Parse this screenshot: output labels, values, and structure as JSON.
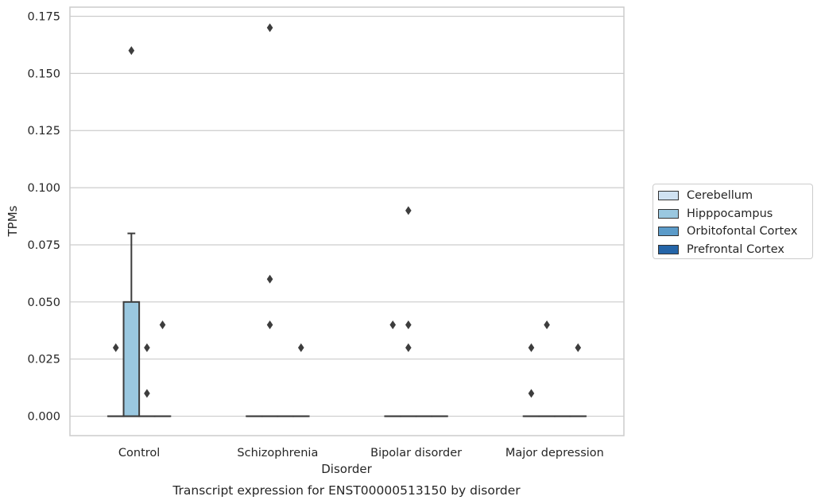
{
  "chart_data": {
    "type": "box",
    "title": "Transcript expression for ENST00000513150 by disorder",
    "xlabel": "Disorder",
    "ylabel": "TPMs",
    "ylim": [
      -0.0085,
      0.179
    ],
    "yticks": [
      0.0,
      0.025,
      0.05,
      0.075,
      0.1,
      0.125,
      0.15,
      0.175
    ],
    "ytick_labels": [
      "0.000",
      "0.025",
      "0.050",
      "0.075",
      "0.100",
      "0.125",
      "0.150",
      "0.175"
    ],
    "categories": [
      "Control",
      "Schizophrenia",
      "Bipolar disorder",
      "Major depression"
    ],
    "grid": "horizontal",
    "legend_position": "right",
    "series": [
      {
        "name": "Cerebellum",
        "color": "#d0e2f2",
        "boxes": [
          {
            "category": "Control",
            "q1": 0,
            "median": 0,
            "q3": 0,
            "whisker_low": 0,
            "whisker_high": 0,
            "outliers": [
              0.03
            ]
          },
          {
            "category": "Schizophrenia",
            "q1": 0,
            "median": 0,
            "q3": 0,
            "whisker_low": 0,
            "whisker_high": 0,
            "outliers": []
          },
          {
            "category": "Bipolar disorder",
            "q1": 0,
            "median": 0,
            "q3": 0,
            "whisker_low": 0,
            "whisker_high": 0,
            "outliers": [
              0.04
            ]
          },
          {
            "category": "Major depression",
            "q1": 0,
            "median": 0,
            "q3": 0,
            "whisker_low": 0,
            "whisker_high": 0,
            "outliers": [
              0.03,
              0.01
            ]
          }
        ]
      },
      {
        "name": "Hipppocampus",
        "color": "#9ac8e0",
        "boxes": [
          {
            "category": "Control",
            "q1": 0,
            "median": 0,
            "q3": 0.05,
            "whisker_low": 0,
            "whisker_high": 0.08,
            "outliers": [
              0.16
            ]
          },
          {
            "category": "Schizophrenia",
            "q1": 0,
            "median": 0,
            "q3": 0,
            "whisker_low": 0,
            "whisker_high": 0,
            "outliers": [
              0.17,
              0.06,
              0.04
            ]
          },
          {
            "category": "Bipolar disorder",
            "q1": 0,
            "median": 0,
            "q3": 0,
            "whisker_low": 0,
            "whisker_high": 0,
            "outliers": [
              0.09,
              0.04,
              0.03
            ]
          },
          {
            "category": "Major depression",
            "q1": 0,
            "median": 0,
            "q3": 0,
            "whisker_low": 0,
            "whisker_high": 0,
            "outliers": [
              0.04
            ]
          }
        ]
      },
      {
        "name": "Orbitofontal Cortex",
        "color": "#5b9bc9",
        "boxes": [
          {
            "category": "Control",
            "q1": 0,
            "median": 0,
            "q3": 0,
            "whisker_low": 0,
            "whisker_high": 0,
            "outliers": [
              0.03,
              0.01
            ]
          },
          {
            "category": "Schizophrenia",
            "q1": 0,
            "median": 0,
            "q3": 0,
            "whisker_low": 0,
            "whisker_high": 0,
            "outliers": []
          },
          {
            "category": "Bipolar disorder",
            "q1": 0,
            "median": 0,
            "q3": 0,
            "whisker_low": 0,
            "whisker_high": 0,
            "outliers": []
          },
          {
            "category": "Major depression",
            "q1": 0,
            "median": 0,
            "q3": 0,
            "whisker_low": 0,
            "whisker_high": 0,
            "outliers": []
          }
        ]
      },
      {
        "name": "Prefrontal Cortex",
        "color": "#2565a8",
        "boxes": [
          {
            "category": "Control",
            "q1": 0,
            "median": 0,
            "q3": 0,
            "whisker_low": 0,
            "whisker_high": 0,
            "outliers": [
              0.04
            ]
          },
          {
            "category": "Schizophrenia",
            "q1": 0,
            "median": 0,
            "q3": 0,
            "whisker_low": 0,
            "whisker_high": 0,
            "outliers": [
              0.03
            ]
          },
          {
            "category": "Bipolar disorder",
            "q1": 0,
            "median": 0,
            "q3": 0,
            "whisker_low": 0,
            "whisker_high": 0,
            "outliers": []
          },
          {
            "category": "Major depression",
            "q1": 0,
            "median": 0,
            "q3": 0,
            "whisker_low": 0,
            "whisker_high": 0,
            "outliers": [
              0.03
            ]
          }
        ]
      }
    ]
  }
}
